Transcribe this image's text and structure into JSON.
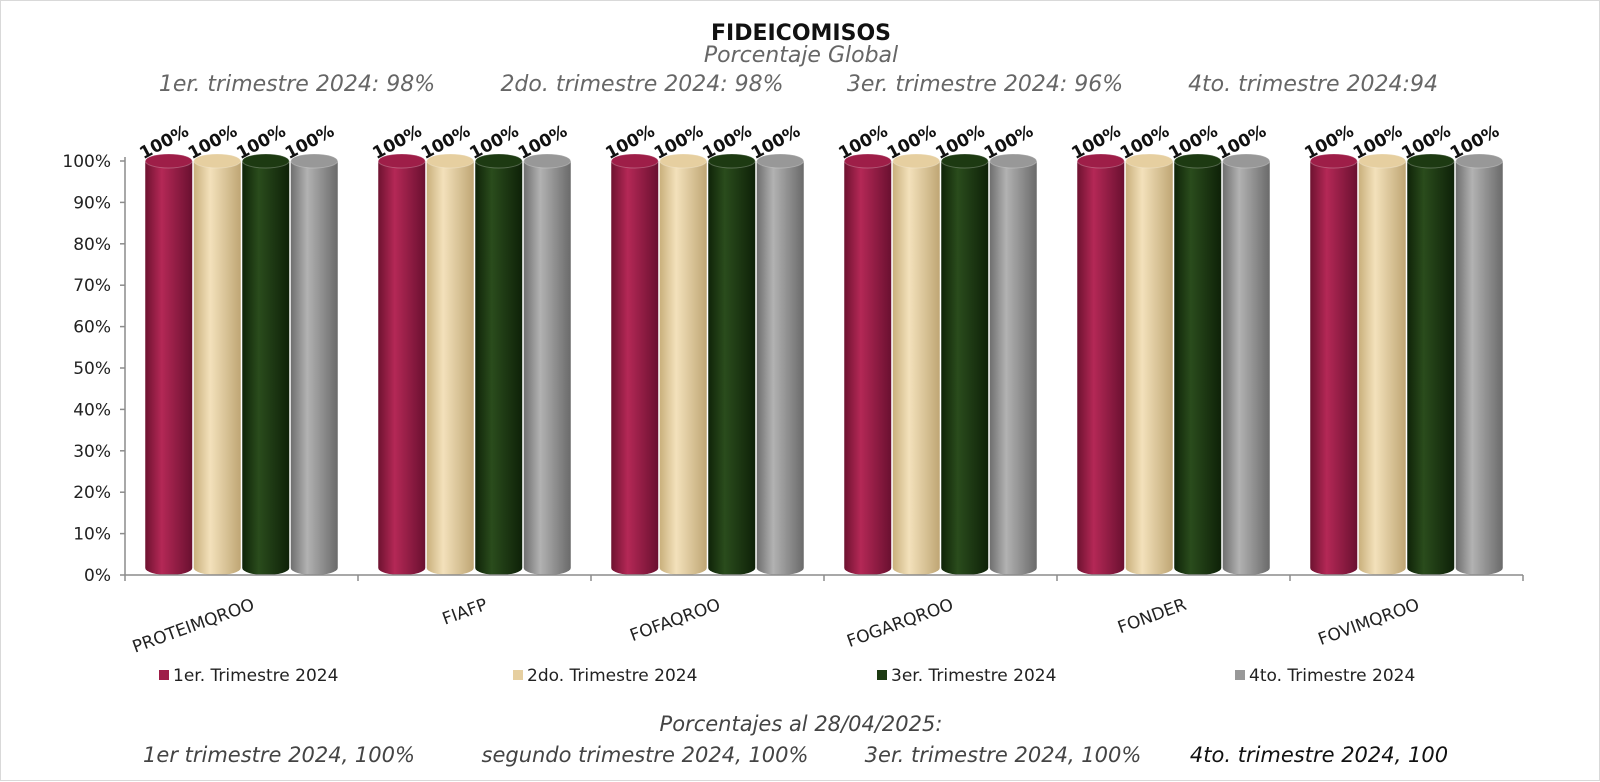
{
  "chart_data": {
    "type": "bar",
    "title": "FIDEICOMISOS",
    "subtitle": "Porcentaje Global",
    "quarter_notes": [
      "1er. trimestre 2024: 98%",
      "2do. trimestre 2024: 98%",
      "3er. trimestre 2024: 96%",
      "4to. trimestre 2024:94"
    ],
    "categories": [
      "PROTEIMQROO",
      "FIAFP",
      "FOFAQROO",
      "FOGARQROO",
      "FONDER",
      "FOVIMQROO"
    ],
    "series": [
      {
        "name": "1er. Trimestre 2024",
        "color": "#9e1e48",
        "values": [
          100,
          100,
          100,
          100,
          100,
          100
        ]
      },
      {
        "name": "2do. Trimestre 2024",
        "color": "#e6cfa0",
        "values": [
          100,
          100,
          100,
          100,
          100,
          100
        ]
      },
      {
        "name": "3er. Trimestre 2024",
        "color": "#1d3a12",
        "values": [
          100,
          100,
          100,
          100,
          100,
          100
        ]
      },
      {
        "name": "4to. Trimestre 2024",
        "color": "#989898",
        "values": [
          100,
          100,
          100,
          100,
          100,
          100
        ]
      }
    ],
    "data_label_suffix": "%",
    "ylim": [
      0,
      100
    ],
    "yticks": [
      "0%",
      "10%",
      "20%",
      "30%",
      "40%",
      "50%",
      "60%",
      "70%",
      "80%",
      "90%",
      "100%"
    ],
    "legend_position": "bottom",
    "grid": false,
    "footer": {
      "line1": "Porcentajes al 28/04/2025:",
      "items": [
        "1er trimestre  2024,  100%",
        "segundo trimestre 2024, 100%",
        "3er. trimestre 2024, 100%",
        "4to. trimestre 2024, 100"
      ]
    }
  }
}
